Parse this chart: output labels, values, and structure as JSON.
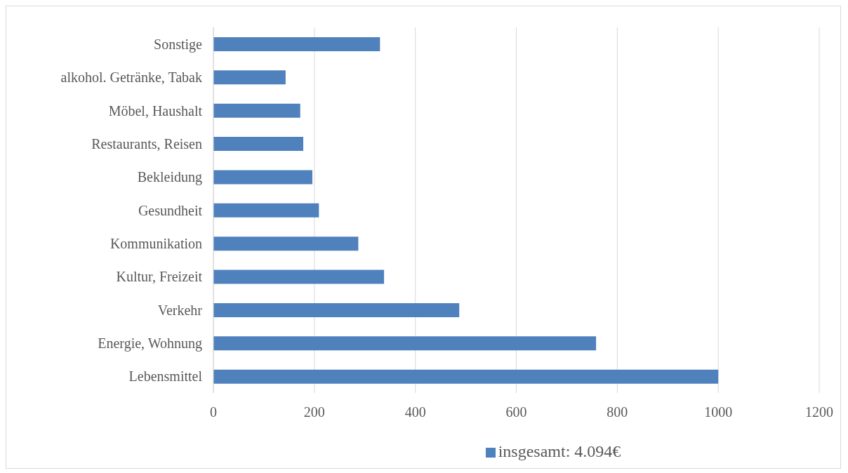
{
  "chart_data": {
    "type": "bar",
    "orientation": "horizontal",
    "categories": [
      "Sonstige",
      "alkohol. Getränke, Tabak",
      "Möbel, Haushalt",
      "Restaurants, Reisen",
      "Bekleidung",
      "Gesundheit",
      "Kommunikation",
      "Kultur, Freizeit",
      "Verkehr",
      "Energie, Wohnung",
      "Lebensmittel"
    ],
    "series": [
      {
        "name": "insgesamt: 4.094€",
        "color": "#4f81bd",
        "values": [
          330,
          143,
          172,
          178,
          196,
          209,
          287,
          338,
          487,
          758,
          1000
        ]
      }
    ],
    "xlim": [
      0,
      1200
    ],
    "xticks": [
      0,
      200,
      400,
      600,
      800,
      1000,
      1200
    ],
    "grid": "x",
    "legend": "bottom"
  }
}
